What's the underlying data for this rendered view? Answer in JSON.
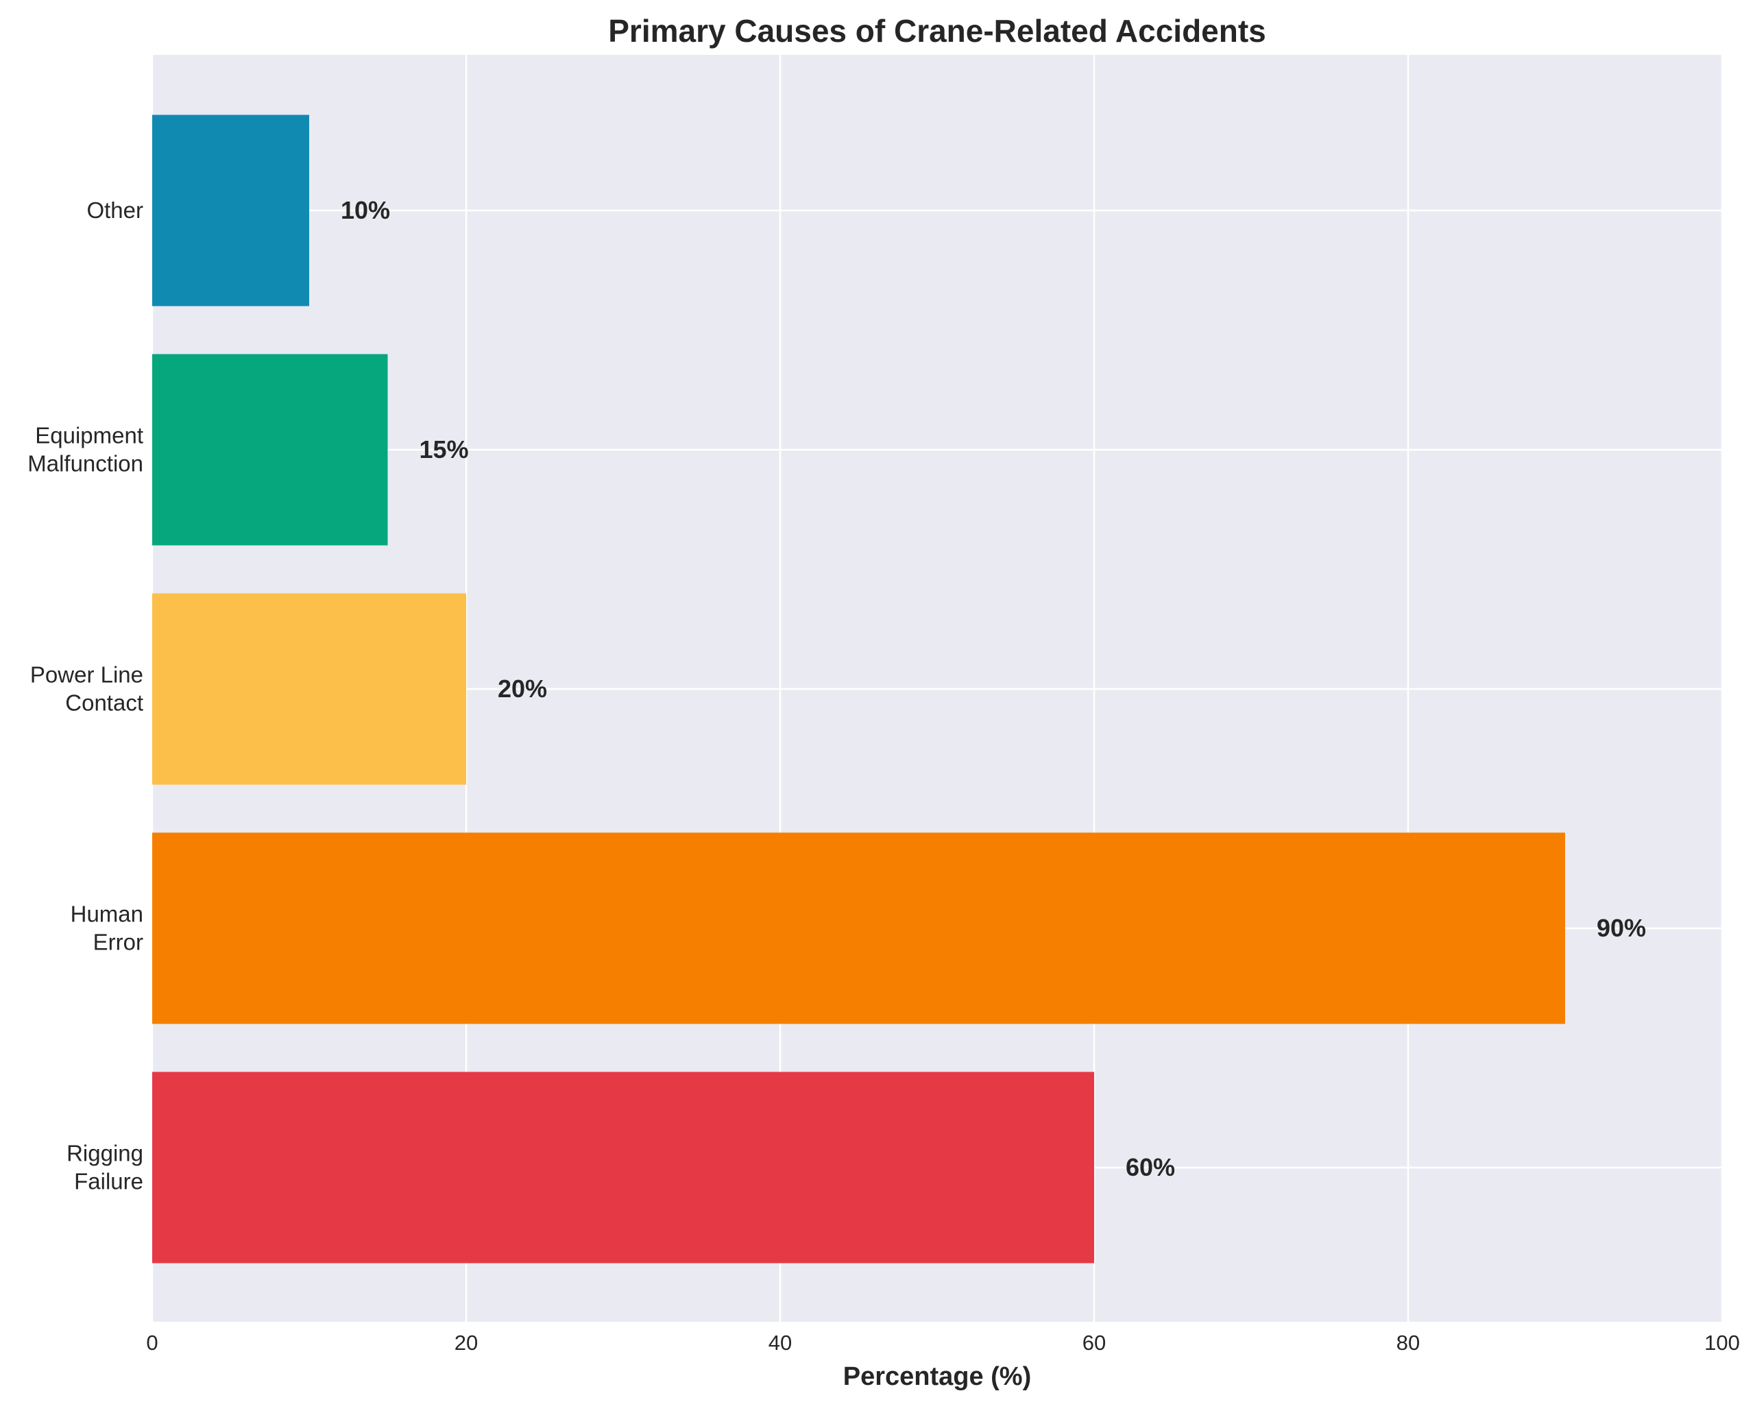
{
  "chart_data": {
    "type": "bar",
    "orientation": "horizontal",
    "title": "Primary Causes of Crane-Related Accidents",
    "xlabel": "Percentage (%)",
    "ylabel": "",
    "categories": [
      "Rigging\nFailure",
      "Human\nError",
      "Power Line\nContact",
      "Equipment\nMalfunction",
      "Other"
    ],
    "values": [
      60,
      90,
      20,
      15,
      10
    ],
    "data_labels": [
      "60%",
      "90%",
      "20%",
      "15%",
      "10%"
    ],
    "colors": [
      "#E63946",
      "#F77F00",
      "#FCBF49",
      "#06A77D",
      "#118AB2"
    ],
    "xlim": [
      0,
      100
    ],
    "xticks": [
      0,
      20,
      40,
      60,
      80,
      100
    ],
    "grid": true,
    "background": "#EAEAF2"
  }
}
